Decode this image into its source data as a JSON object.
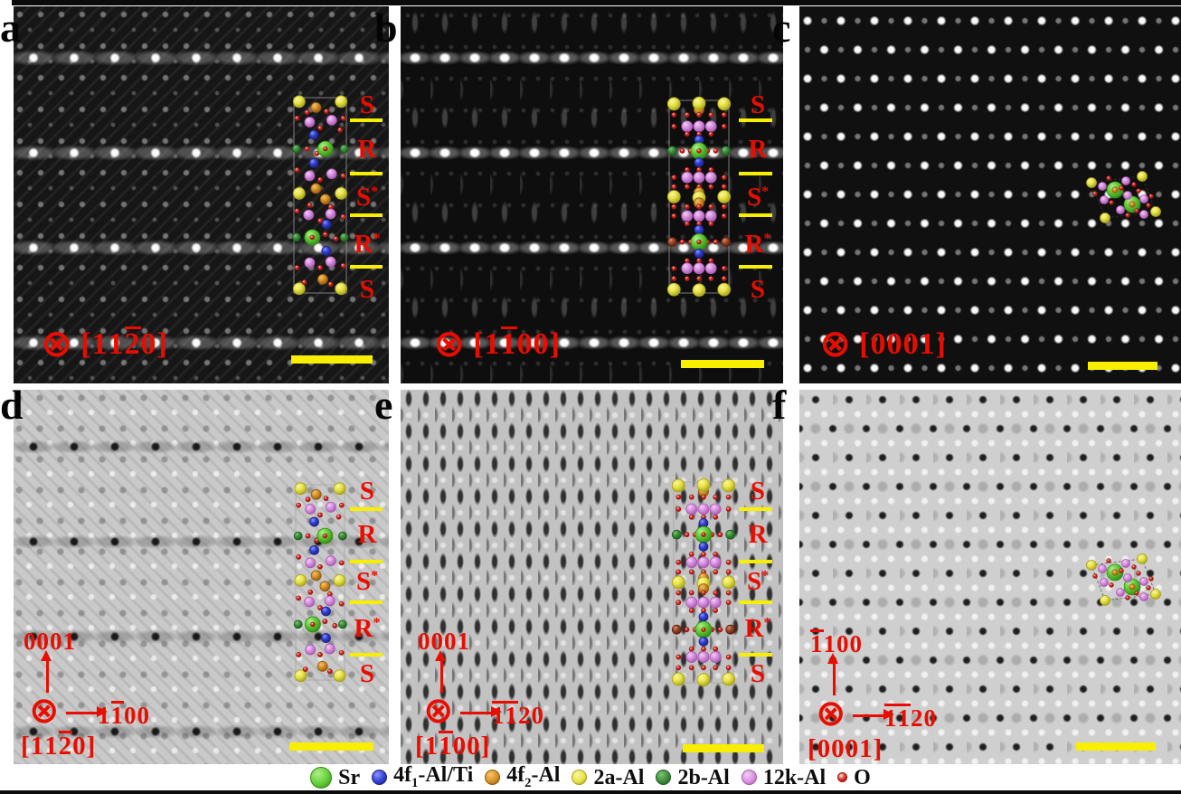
{
  "colors": {
    "annotation_red": "#e90d00",
    "scalebar_yellow": "#f8ef00",
    "separator_yellow": "#f8ef00",
    "label_black": "#050505",
    "atoms": {
      "sr": {
        "hi": "#aef08a",
        "fill": "#63cc38",
        "edge": "#2f8c12"
      },
      "al4f1": {
        "hi": "#8a94ff",
        "fill": "#3240d0",
        "edge": "#1a2288"
      },
      "al4f2": {
        "hi": "#f4c46a",
        "fill": "#d89028",
        "edge": "#8f5a0e"
      },
      "al2a": {
        "hi": "#f8f6a0",
        "fill": "#e8e44a",
        "edge": "#a8a018"
      },
      "al2b": {
        "hi": "#7cc470",
        "fill": "#3c8c3c",
        "edge": "#1c5c20"
      },
      "al12k": {
        "hi": "#f2ccf6",
        "fill": "#d893e0",
        "edge": "#a858b0"
      },
      "o": {
        "hi": "#f4ded2",
        "fill": "#d42a1e",
        "edge": "#a01410"
      },
      "dr": {
        "hi": "#d09070",
        "fill": "#9a4428",
        "edge": "#5c1e0e"
      }
    }
  },
  "panels": [
    {
      "id": "a",
      "letter": "a",
      "mode": "dark",
      "zone": [
        [
          "1",
          false
        ],
        [
          "1",
          false
        ],
        [
          "2",
          true
        ],
        [
          "0",
          false
        ]
      ],
      "segments": [
        [
          "S",
          false
        ],
        [
          "R",
          false
        ],
        [
          "S",
          true
        ],
        [
          "R",
          true
        ],
        [
          "S",
          false
        ]
      ]
    },
    {
      "id": "b",
      "letter": "b",
      "mode": "dark",
      "zone": [
        [
          "1",
          false
        ],
        [
          "1",
          true
        ],
        [
          "0",
          false
        ],
        [
          "0",
          false
        ]
      ],
      "segments": [
        [
          "S",
          false
        ],
        [
          "R",
          false
        ],
        [
          "S",
          true
        ],
        [
          "R",
          true
        ],
        [
          "S",
          false
        ]
      ]
    },
    {
      "id": "c",
      "letter": "c",
      "mode": "dark",
      "zone": [
        [
          "0",
          false
        ],
        [
          "0",
          false
        ],
        [
          "0",
          false
        ],
        [
          "1",
          false
        ]
      ],
      "segments": []
    },
    {
      "id": "d",
      "letter": "d",
      "mode": "light",
      "axes": {
        "up": [
          [
            "0",
            false
          ],
          [
            "0",
            false
          ],
          [
            "0",
            false
          ],
          [
            "1",
            false
          ]
        ],
        "right": [
          [
            "1",
            false
          ],
          [
            "1",
            true
          ],
          [
            "0",
            false
          ],
          [
            "0",
            false
          ]
        ],
        "zone": [
          [
            "1",
            false
          ],
          [
            "1",
            false
          ],
          [
            "2",
            true
          ],
          [
            "0",
            false
          ]
        ]
      },
      "segments": [
        [
          "S",
          false
        ],
        [
          "R",
          false
        ],
        [
          "S",
          true
        ],
        [
          "R",
          true
        ],
        [
          "S",
          false
        ]
      ]
    },
    {
      "id": "e",
      "letter": "e",
      "mode": "light",
      "axes": {
        "up": [
          [
            "0",
            false
          ],
          [
            "0",
            false
          ],
          [
            "0",
            false
          ],
          [
            "1",
            false
          ]
        ],
        "right": [
          [
            "1",
            true
          ],
          [
            "1",
            true
          ],
          [
            "2",
            false
          ],
          [
            "0",
            false
          ]
        ],
        "zone": [
          [
            "1",
            false
          ],
          [
            "1",
            true
          ],
          [
            "0",
            false
          ],
          [
            "0",
            false
          ]
        ]
      },
      "segments": [
        [
          "S",
          false
        ],
        [
          "R",
          false
        ],
        [
          "S",
          true
        ],
        [
          "R",
          true
        ],
        [
          "S",
          false
        ]
      ]
    },
    {
      "id": "f",
      "letter": "f",
      "mode": "light",
      "axes": {
        "up": [
          [
            "1",
            true
          ],
          [
            "1",
            false
          ],
          [
            "0",
            false
          ],
          [
            "0",
            false
          ]
        ],
        "right": [
          [
            "1",
            true
          ],
          [
            "1",
            true
          ],
          [
            "2",
            false
          ],
          [
            "0",
            false
          ]
        ],
        "zone": [
          [
            "0",
            false
          ],
          [
            "0",
            false
          ],
          [
            "0",
            false
          ],
          [
            "1",
            false
          ]
        ]
      },
      "segments": []
    }
  ],
  "legend": {
    "items": [
      {
        "key": "sr",
        "size": 22,
        "text": [
          [
            "Sr",
            false
          ]
        ]
      },
      {
        "key": "al4f1",
        "size": 15,
        "text": [
          [
            "4f",
            false
          ],
          [
            "1",
            true
          ],
          [
            "-Al/Ti",
            false
          ]
        ]
      },
      {
        "key": "al4f2",
        "size": 15,
        "text": [
          [
            "4f",
            false
          ],
          [
            "2",
            true
          ],
          [
            "-Al",
            false
          ]
        ]
      },
      {
        "key": "al2a",
        "size": 15,
        "text": [
          [
            "2a-Al",
            false
          ]
        ]
      },
      {
        "key": "al2b",
        "size": 15,
        "text": [
          [
            "2b-Al",
            false
          ]
        ]
      },
      {
        "key": "al12k",
        "size": 15,
        "text": [
          [
            "12k-Al",
            false
          ]
        ]
      },
      {
        "key": "o",
        "size": 9,
        "text": [
          [
            "O",
            false
          ]
        ]
      }
    ]
  }
}
